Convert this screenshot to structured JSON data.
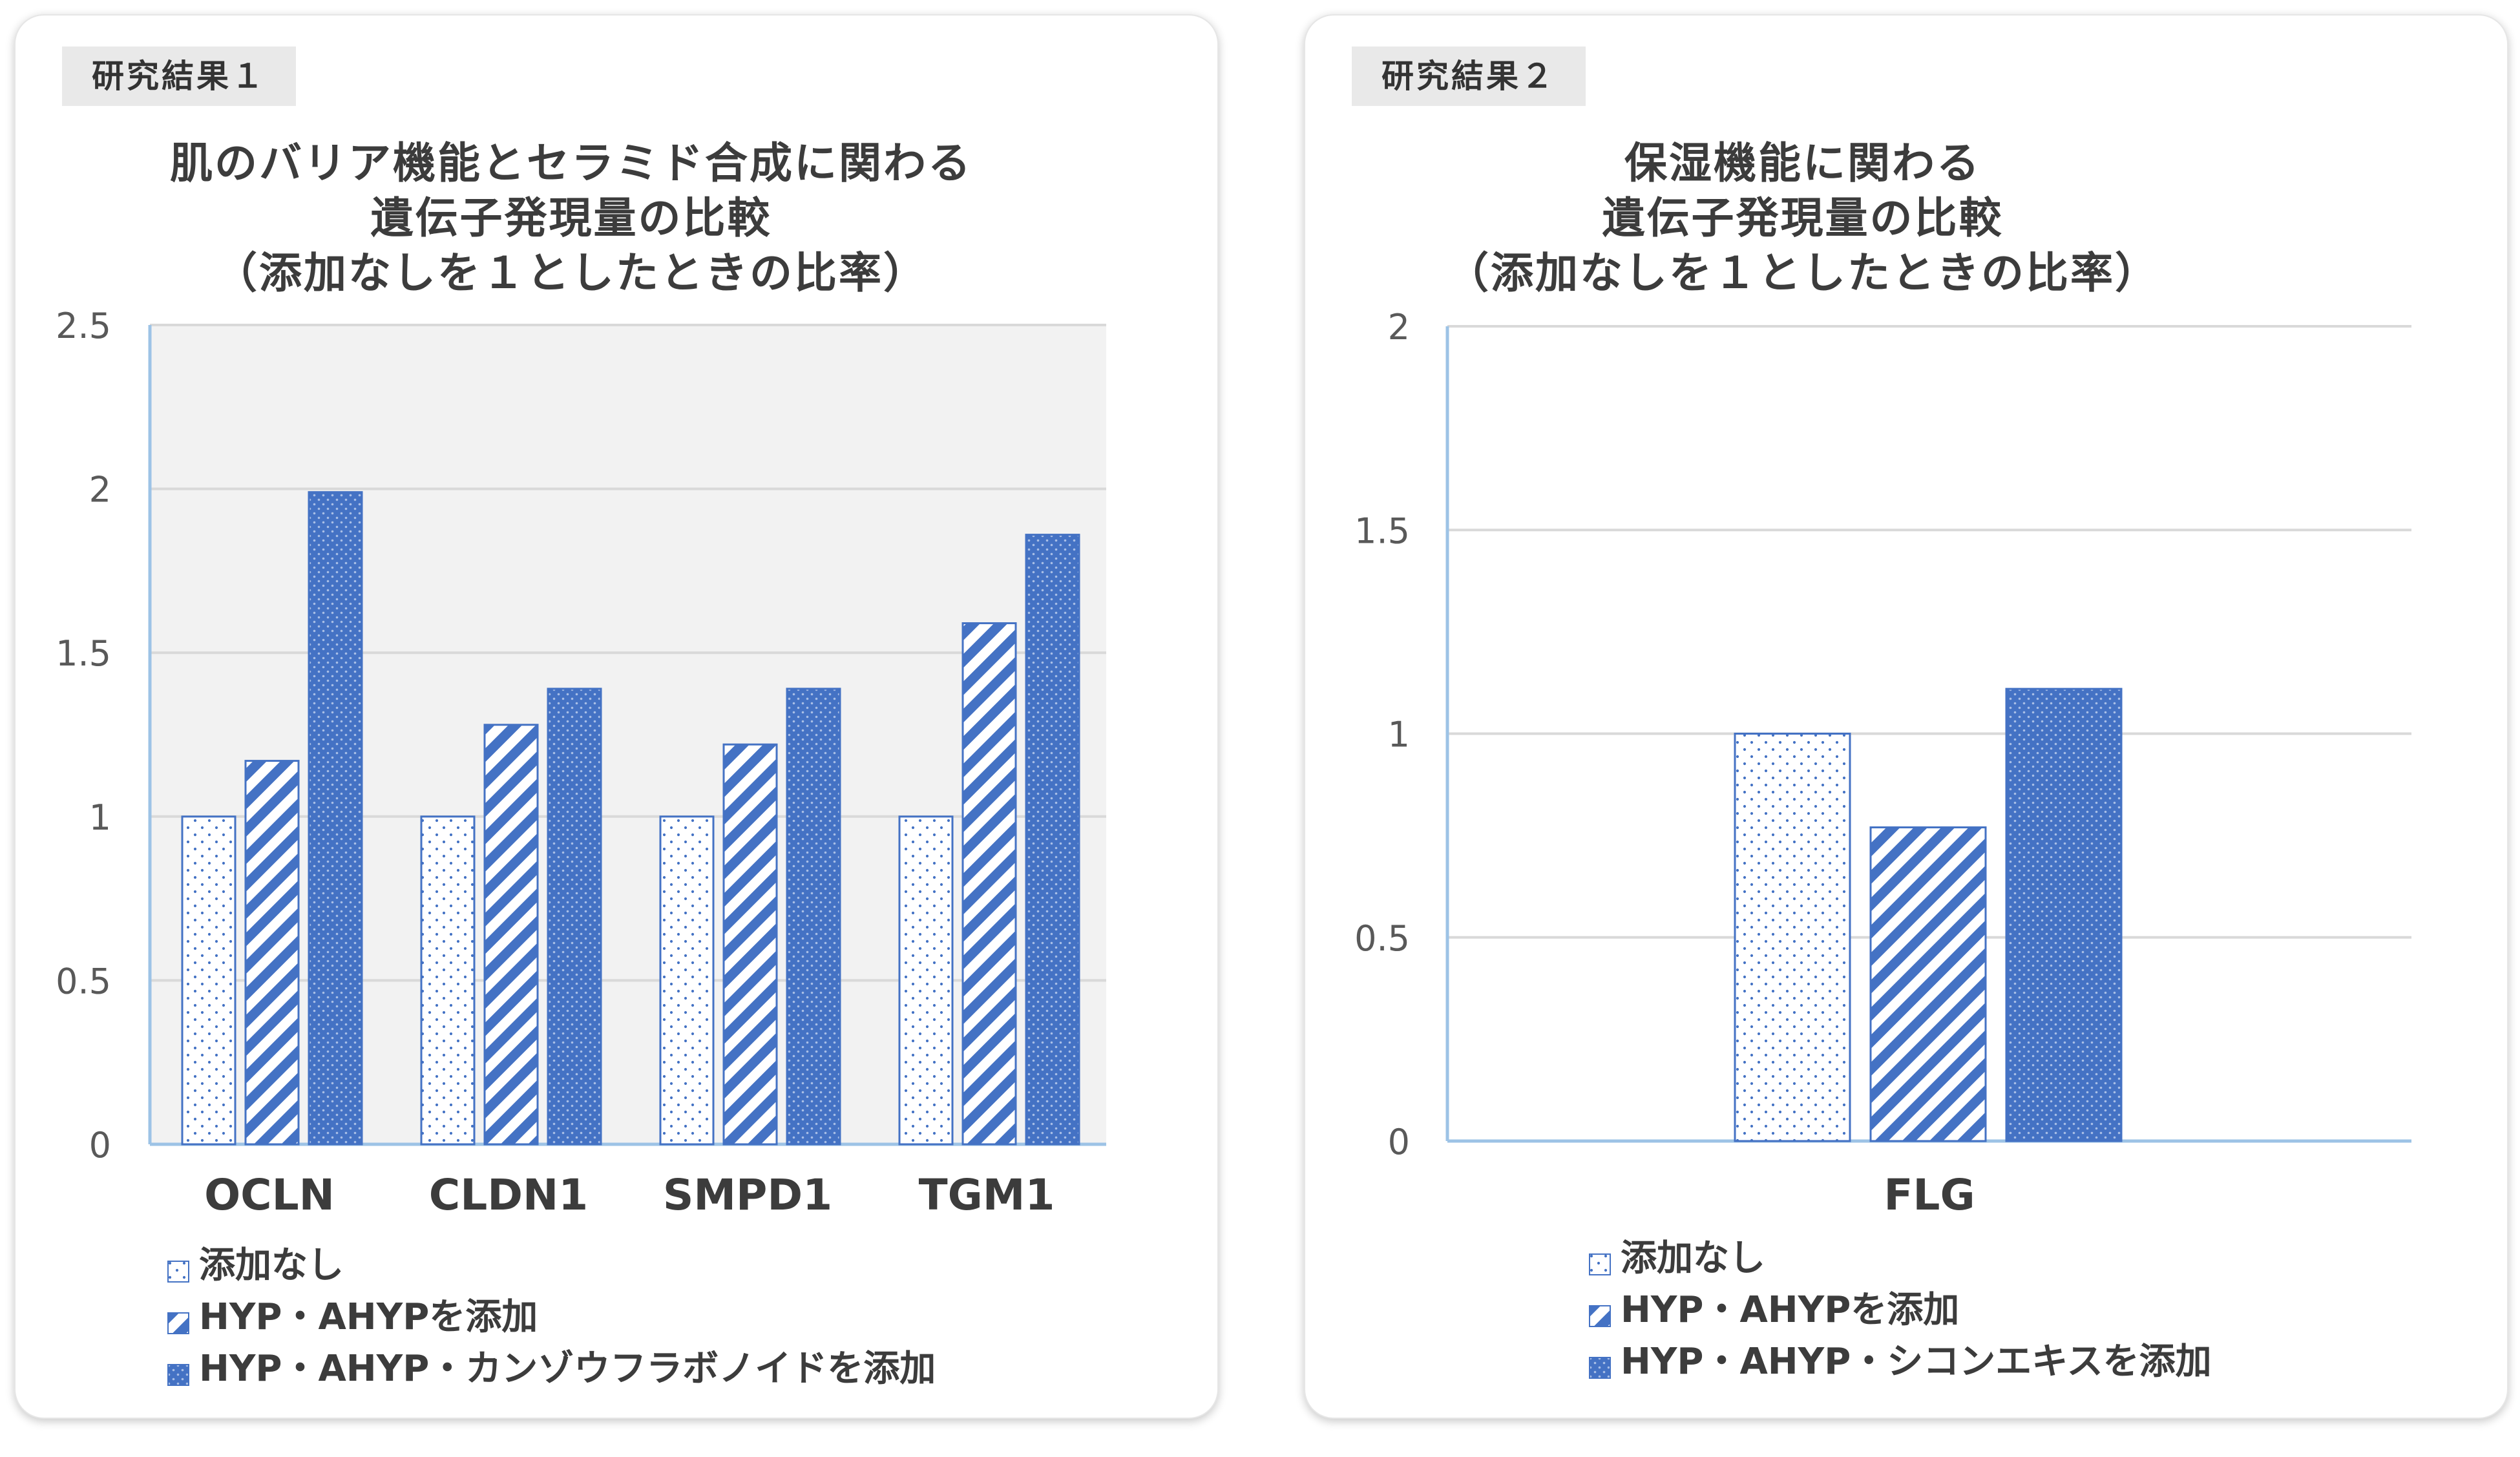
{
  "colors": {
    "accent": "#4472c4",
    "grid": "#d9d9d9",
    "plot_background": "#f2f2f2",
    "axis": "#9dc3e6",
    "text": "#3c3c3c"
  },
  "panels": [
    {
      "tag": "研究結果１",
      "title_lines": [
        "肌のバリア機能とセラミド合成に関わる",
        "遺伝子発現量の比較",
        "（添加なしを１としたときの比率）"
      ],
      "legend": [
        "添加なし",
        "HYP・AHYPを添加",
        "HYP・AHYP・カンゾウフラボノイドを添加"
      ]
    },
    {
      "tag": "研究結果２",
      "title_lines": [
        "保湿機能に関わる",
        "遺伝子発現量の比較",
        "（添加なしを１としたときの比率）"
      ],
      "legend": [
        "添加なし",
        "HYP・AHYPを添加",
        "HYP・AHYP・シコンエキスを添加"
      ]
    }
  ],
  "chart_data": [
    {
      "type": "bar",
      "title": "肌のバリア機能とセラミド合成に関わる 遺伝子発現量の比較 （添加なしを１としたときの比率）",
      "categories": [
        "OCLN",
        "CLDN1",
        "SMPD1",
        "TGM1"
      ],
      "ylim": [
        0,
        2.5
      ],
      "yticks": [
        "0",
        "0.5",
        "1",
        "1.5",
        "2",
        "2.5"
      ],
      "ytick_values": [
        0,
        0.5,
        1,
        1.5,
        2,
        2.5
      ],
      "grid": true,
      "legend_position": "bottom",
      "series": [
        {
          "name": "添加なし",
          "values": [
            1.0,
            1.0,
            1.0,
            1.0
          ],
          "pattern": "dots"
        },
        {
          "name": "HYP・AHYPを添加",
          "values": [
            1.17,
            1.28,
            1.22,
            1.59
          ],
          "pattern": "stripes"
        },
        {
          "name": "HYP・AHYP・カンゾウフラボノイドを添加",
          "values": [
            1.99,
            1.39,
            1.39,
            1.86
          ],
          "pattern": "solid-dots"
        }
      ]
    },
    {
      "type": "bar",
      "title": "保湿機能に関わる 遺伝子発現量の比較 （添加なしを１としたときの比率）",
      "categories": [
        "FLG"
      ],
      "ylim": [
        0,
        2
      ],
      "yticks": [
        "0",
        "0.5",
        "1",
        "1.5",
        "2"
      ],
      "ytick_values": [
        0,
        0.5,
        1,
        1.5,
        2
      ],
      "grid": true,
      "legend_position": "bottom",
      "series": [
        {
          "name": "添加なし",
          "values": [
            1.0
          ],
          "pattern": "dots"
        },
        {
          "name": "HYP・AHYPを添加",
          "values": [
            0.77
          ],
          "pattern": "stripes"
        },
        {
          "name": "HYP・AHYP・シコンエキスを添加",
          "values": [
            1.11
          ],
          "pattern": "solid-dots"
        }
      ]
    }
  ]
}
